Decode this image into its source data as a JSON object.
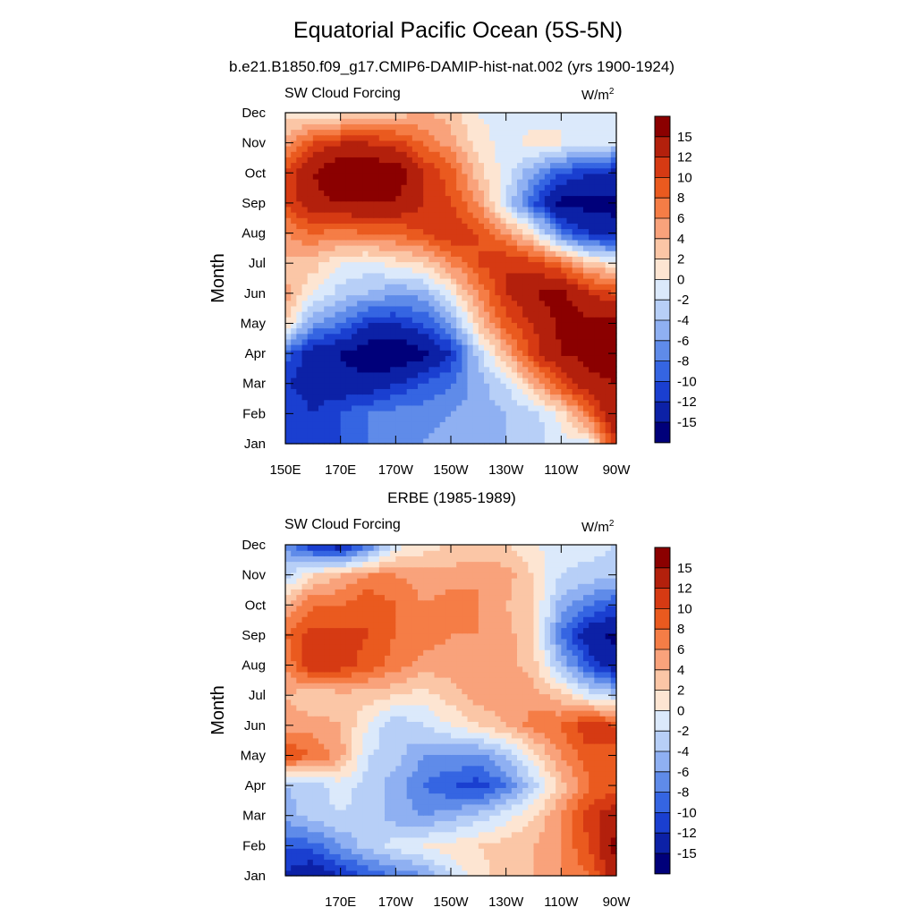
{
  "figure": {
    "title": "Equatorial Pacific Ocean (5S-5N)",
    "colorbar_labels": [
      "15",
      "12",
      "10",
      "8",
      "6",
      "4",
      "2",
      "0",
      "-2",
      "-4",
      "-6",
      "-8",
      "-10",
      "-12",
      "-15"
    ],
    "colorbar_colors": [
      "#8b0000",
      "#b3200c",
      "#d63a13",
      "#ea5a1f",
      "#f57d46",
      "#f9a27b",
      "#fbc6a6",
      "#fde5d2",
      "#dbe9fb",
      "#b7cff7",
      "#8fb0f2",
      "#5f8be9",
      "#3565e2",
      "#1a3fd0",
      "#0c21a6",
      "#00007a"
    ]
  },
  "chart_data": [
    {
      "type": "heatmap",
      "title": "b.e21.B1850.f09_g17.CMIP6-DAMIP-hist-nat.002 (yrs 1900-1924)",
      "left_string": "SW Cloud Forcing",
      "units": "W/m",
      "units_sup": "2",
      "xlabel": "",
      "ylabel": "Month",
      "x_tick_labels": [
        "150E",
        "170E",
        "170W",
        "150W",
        "130W",
        "110W",
        "90W"
      ],
      "y_tick_labels": [
        "Jan",
        "Feb",
        "Mar",
        "Apr",
        "May",
        "Jun",
        "Jul",
        "Aug",
        "Sep",
        "Oct",
        "Nov",
        "Dec"
      ],
      "xlim": [
        150,
        270
      ],
      "ylim": [
        1,
        12
      ],
      "x": [
        150,
        160,
        170,
        180,
        190,
        200,
        210,
        220,
        230,
        240,
        250,
        260,
        270
      ],
      "y": [
        1,
        2,
        3,
        4,
        5,
        6,
        7,
        8,
        9,
        10,
        11,
        12
      ],
      "z": [
        [
          -10,
          -10,
          -10,
          -8,
          -7,
          -6,
          -5,
          -4,
          -4,
          -3,
          -1,
          -1,
          12
        ],
        [
          -10,
          -12,
          -10,
          -8,
          -7,
          -7,
          -6,
          -5,
          -4,
          -3,
          1,
          8,
          15
        ],
        [
          -12,
          -13,
          -14,
          -14,
          -12,
          -10,
          -8,
          -5,
          -2,
          4,
          10,
          14,
          15
        ],
        [
          -9,
          -14,
          -15,
          -17,
          -18,
          -16,
          -12,
          -3,
          4,
          11,
          15,
          16,
          18
        ],
        [
          2,
          -6,
          -8,
          -12,
          -12,
          -10,
          -6,
          3,
          9,
          12,
          16,
          16,
          16
        ],
        [
          5,
          0,
          -3,
          -4,
          -6,
          -5,
          0,
          6,
          12,
          15,
          16,
          12,
          10
        ],
        [
          3,
          3,
          0,
          -1,
          1,
          2,
          6,
          10,
          12,
          11,
          8,
          3,
          1
        ],
        [
          6,
          8,
          7,
          8,
          8,
          10,
          12,
          10,
          6,
          1,
          -8,
          -12,
          -14
        ],
        [
          10,
          14,
          15,
          15,
          15,
          12,
          10,
          6,
          -2,
          -10,
          -16,
          -16,
          -16
        ],
        [
          10,
          15,
          18,
          18,
          17,
          12,
          9,
          3,
          -1,
          -6,
          -10,
          -12,
          -13
        ],
        [
          5,
          10,
          12,
          12,
          11,
          8,
          5,
          1,
          -1,
          1,
          0,
          -1,
          -2
        ],
        [
          1,
          0,
          1,
          2,
          3,
          4,
          3,
          0,
          -1,
          -1,
          0,
          -1,
          -1
        ]
      ]
    },
    {
      "type": "heatmap",
      "title": "ERBE (1985-1989)",
      "left_string": "SW Cloud Forcing",
      "units": "W/m",
      "units_sup": "2",
      "xlabel": "",
      "ylabel": "Month",
      "x_tick_labels": [
        "170E",
        "170W",
        "150W",
        "130W",
        "110W",
        "90W"
      ],
      "y_tick_labels": [
        "Jan",
        "Feb",
        "Mar",
        "Apr",
        "May",
        "Jun",
        "Jul",
        "Aug",
        "Sep",
        "Oct",
        "Nov",
        "Dec"
      ],
      "xlim": [
        150,
        270
      ],
      "ylim": [
        1,
        12
      ],
      "x": [
        150,
        160,
        170,
        180,
        190,
        200,
        210,
        220,
        230,
        240,
        250,
        260,
        270
      ],
      "y": [
        1,
        2,
        3,
        4,
        5,
        6,
        7,
        8,
        9,
        10,
        11,
        12
      ],
      "z": [
        [
          -12,
          -15,
          -12,
          -10,
          -8,
          -6,
          -2,
          1,
          3,
          4,
          6,
          8,
          14
        ],
        [
          -10,
          -9,
          -6,
          -3,
          -1,
          0,
          1,
          2,
          3,
          4,
          6,
          10,
          16
        ],
        [
          -5,
          -3,
          -2,
          -3,
          -5,
          -6,
          -5,
          -3,
          -1,
          2,
          6,
          11,
          14
        ],
        [
          -4,
          -3,
          -1,
          -3,
          -5,
          -8,
          -10,
          -11,
          -8,
          -3,
          3,
          8,
          9
        ],
        [
          10,
          8,
          5,
          -2,
          -3,
          -6,
          -6,
          -7,
          -4,
          1,
          6,
          9,
          10
        ],
        [
          5,
          5,
          4,
          0,
          -4,
          -2,
          0,
          2,
          4,
          7,
          8,
          12,
          10
        ],
        [
          4,
          2,
          3,
          3,
          2,
          1,
          3,
          5,
          5,
          5,
          3,
          -1,
          -3
        ],
        [
          6,
          12,
          11,
          9,
          7,
          5,
          5,
          6,
          5,
          3,
          -4,
          -10,
          -14
        ],
        [
          8,
          11,
          11,
          10,
          8,
          7,
          6,
          6,
          5,
          2,
          -8,
          -14,
          -16
        ],
        [
          4,
          8,
          8,
          10,
          8,
          6,
          7,
          6,
          4,
          2,
          -5,
          -8,
          -10
        ],
        [
          -3,
          2,
          4,
          6,
          6,
          5,
          5,
          6,
          5,
          2,
          -2,
          -3,
          -3
        ],
        [
          -6,
          -12,
          -14,
          -8,
          -1,
          1,
          2,
          2,
          2,
          0,
          -1,
          -1,
          -2
        ]
      ]
    }
  ]
}
